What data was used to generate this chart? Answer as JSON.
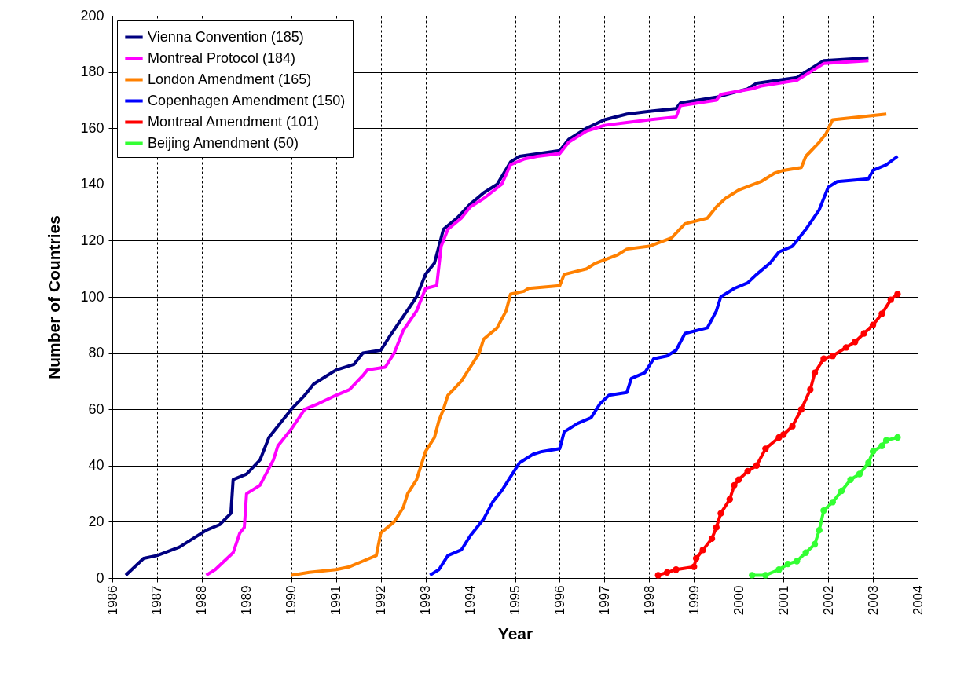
{
  "chart_data": {
    "type": "line",
    "xlabel": "Year",
    "ylabel": "Number of Countries",
    "xlim": [
      1986,
      2004
    ],
    "xticks": [
      1986,
      1987,
      1988,
      1989,
      1990,
      1991,
      1992,
      1993,
      1994,
      1995,
      1996,
      1997,
      1998,
      1999,
      2000,
      2001,
      2002,
      2003,
      2004
    ],
    "ylim": [
      0,
      200
    ],
    "yticks": [
      0,
      20,
      40,
      60,
      80,
      100,
      120,
      140,
      160,
      180,
      200
    ],
    "grid": true,
    "legend": "top left",
    "line_style": "solid",
    "series": [
      {
        "name": "Vienna Convention (185)",
        "color": "#000080",
        "x": [
          1986.3,
          1986.5,
          1986.7,
          1987.0,
          1987.5,
          1987.8,
          1988.1,
          1988.4,
          1988.65,
          1988.7,
          1989.0,
          1989.3,
          1989.5,
          1989.8,
          1990.0,
          1990.3,
          1990.5,
          1990.8,
          1991.0,
          1991.4,
          1991.6,
          1992.0,
          1992.2,
          1992.5,
          1992.8,
          1993.0,
          1993.2,
          1993.4,
          1993.7,
          1994.0,
          1994.3,
          1994.6,
          1994.9,
          1995.1,
          1996.0,
          1996.2,
          1996.6,
          1997.0,
          1997.5,
          1998.0,
          1998.6,
          1998.7,
          1999.5,
          2000.2,
          2000.4,
          2001.3,
          2001.6,
          2001.9,
          2002.9
        ],
        "values": [
          1,
          4,
          7,
          8,
          11,
          14,
          17,
          19,
          23,
          35,
          37,
          42,
          50,
          56,
          60,
          65,
          69,
          72,
          74,
          76,
          80,
          81,
          86,
          93,
          100,
          108,
          112,
          124,
          128,
          133,
          137,
          140,
          148,
          150,
          152,
          156,
          160,
          163,
          165,
          166,
          167,
          169,
          171,
          174,
          176,
          178,
          181,
          184,
          185
        ]
      },
      {
        "name": "Montreal Protocol (184)",
        "color": "#ff00ff",
        "x": [
          1988.1,
          1988.3,
          1988.5,
          1988.7,
          1988.85,
          1988.95,
          1989.0,
          1989.3,
          1989.6,
          1989.7,
          1990.0,
          1990.3,
          1990.6,
          1991.0,
          1991.3,
          1991.6,
          1991.7,
          1992.1,
          1992.3,
          1992.5,
          1992.8,
          1993.0,
          1993.25,
          1993.35,
          1993.5,
          1993.8,
          1994.0,
          1994.3,
          1994.7,
          1994.9,
          1995.2,
          1995.5,
          1996.0,
          1996.2,
          1996.6,
          1997.0,
          1997.5,
          1998.0,
          1998.6,
          1998.7,
          1999.5,
          1999.6,
          2000.3,
          2000.5,
          2001.3,
          2001.6,
          2001.9,
          2002.9
        ],
        "values": [
          1,
          3,
          6,
          9,
          16,
          18,
          30,
          33,
          42,
          47,
          53,
          60,
          62,
          65,
          67,
          72,
          74,
          75,
          80,
          88,
          95,
          103,
          104,
          118,
          124,
          128,
          132,
          135,
          140,
          147,
          149,
          150,
          151,
          155,
          159,
          161,
          162,
          163,
          164,
          168,
          170,
          172,
          174,
          175,
          177,
          180,
          183,
          184
        ]
      },
      {
        "name": "London Amendment (165)",
        "color": "#ff8000",
        "x": [
          1990.0,
          1990.4,
          1991.0,
          1991.3,
          1991.6,
          1991.9,
          1992.0,
          1992.3,
          1992.5,
          1992.6,
          1992.8,
          1993.0,
          1993.2,
          1993.3,
          1993.4,
          1993.5,
          1993.8,
          1994.0,
          1994.2,
          1994.3,
          1994.6,
          1994.8,
          1994.9,
          1995.2,
          1995.3,
          1996.0,
          1996.1,
          1996.6,
          1996.8,
          1997.3,
          1997.5,
          1998.0,
          1998.5,
          1998.8,
          1999.3,
          1999.5,
          1999.7,
          2000.0,
          2000.5,
          2000.8,
          2001.0,
          2001.4,
          2001.5,
          2001.8,
          2001.95,
          2002.1,
          2003.3
        ],
        "values": [
          1,
          2,
          3,
          4,
          6,
          8,
          16,
          20,
          25,
          30,
          35,
          45,
          50,
          56,
          60,
          65,
          70,
          75,
          80,
          85,
          89,
          95,
          101,
          102,
          103,
          104,
          108,
          110,
          112,
          115,
          117,
          118,
          121,
          126,
          128,
          132,
          135,
          138,
          141,
          144,
          145,
          146,
          150,
          155,
          158,
          163,
          165
        ]
      },
      {
        "name": "Copenhagen Amendment (150)",
        "color": "#0000ff",
        "x": [
          1993.1,
          1993.3,
          1993.5,
          1993.8,
          1994.0,
          1994.3,
          1994.5,
          1994.7,
          1994.9,
          1995.1,
          1995.4,
          1995.6,
          1996.0,
          1996.1,
          1996.4,
          1996.7,
          1996.9,
          1997.1,
          1997.5,
          1997.6,
          1997.9,
          1998.1,
          1998.4,
          1998.6,
          1998.8,
          1999.3,
          1999.5,
          1999.6,
          1999.9,
          2000.2,
          2000.4,
          2000.7,
          2000.9,
          2001.2,
          2001.5,
          2001.8,
          2002.0,
          2002.2,
          2002.9,
          2003.0,
          2003.3,
          2003.55
        ],
        "values": [
          1,
          3,
          8,
          10,
          15,
          21,
          27,
          31,
          36,
          41,
          44,
          45,
          46,
          52,
          55,
          57,
          62,
          65,
          66,
          71,
          73,
          78,
          79,
          81,
          87,
          89,
          95,
          100,
          103,
          105,
          108,
          112,
          116,
          118,
          124,
          131,
          139,
          141,
          142,
          145,
          147,
          150
        ]
      },
      {
        "name": "Montreal Amendment (101)",
        "color": "#ff0000",
        "marker": "circle",
        "x": [
          1998.2,
          1998.4,
          1998.6,
          1999.0,
          1999.05,
          1999.2,
          1999.4,
          1999.5,
          1999.6,
          1999.8,
          1999.9,
          2000.0,
          2000.2,
          2000.4,
          2000.6,
          2000.9,
          2001.0,
          2001.2,
          2001.4,
          2001.6,
          2001.7,
          2001.9,
          2002.1,
          2002.4,
          2002.6,
          2002.8,
          2003.0,
          2003.2,
          2003.4,
          2003.55
        ],
        "values": [
          1,
          2,
          3,
          4,
          7,
          10,
          14,
          18,
          23,
          28,
          33,
          35,
          38,
          40,
          46,
          50,
          51,
          54,
          60,
          67,
          73,
          78,
          79,
          82,
          84,
          87,
          90,
          94,
          99,
          101
        ]
      },
      {
        "name": "Beijing Amendment (50)",
        "color": "#33ff33",
        "marker": "circle",
        "x": [
          2000.3,
          2000.6,
          2000.9,
          2001.1,
          2001.3,
          2001.5,
          2001.7,
          2001.8,
          2001.9,
          2002.1,
          2002.3,
          2002.5,
          2002.7,
          2002.9,
          2003.0,
          2003.2,
          2003.3,
          2003.55
        ],
        "values": [
          1,
          1,
          3,
          5,
          6,
          9,
          12,
          17,
          24,
          27,
          31,
          35,
          37,
          41,
          45,
          47,
          49,
          50
        ]
      }
    ]
  }
}
